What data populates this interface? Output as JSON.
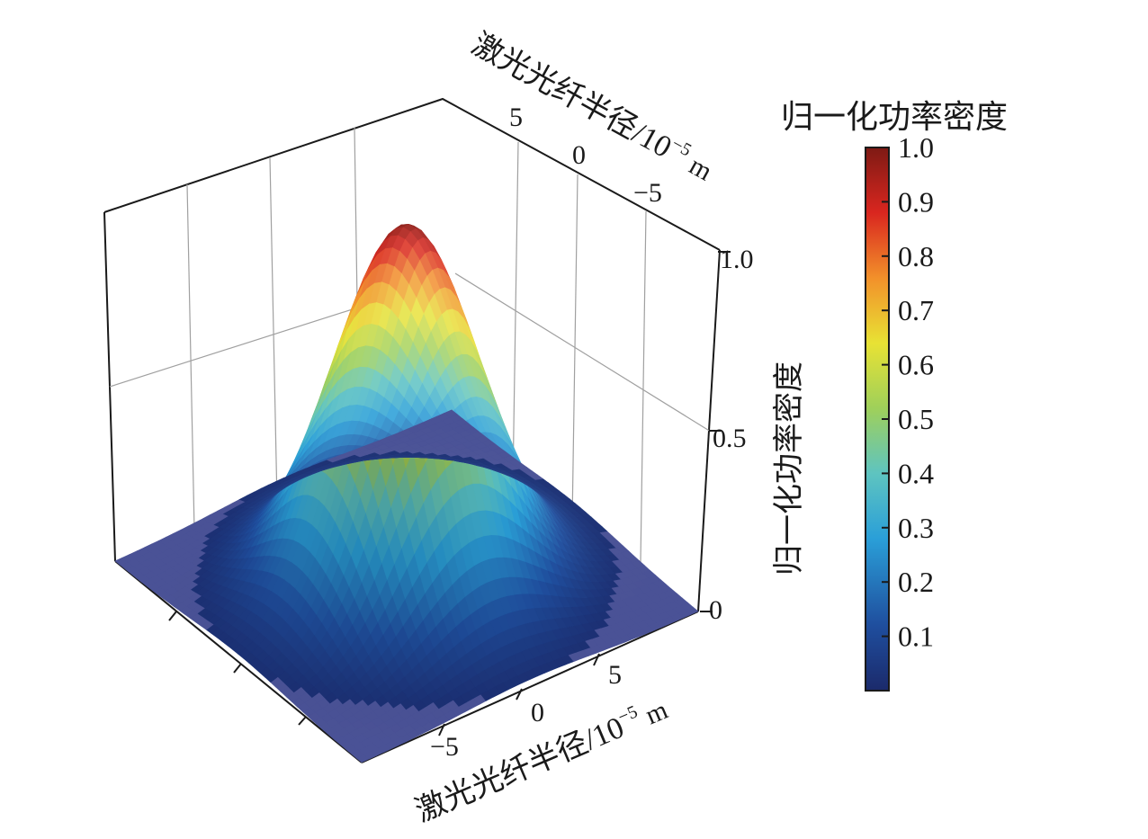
{
  "chart_data": {
    "type": "surface3d",
    "function": "gaussian",
    "x_label": "激光光纤半径/10",
    "y_label": "激光光纤半径/10",
    "z_label": "归一化功率密度",
    "axis_exponent": "−5",
    "axis_unit": "m",
    "x_range": [
      -10,
      10
    ],
    "y_range": [
      -10,
      10
    ],
    "z_range": [
      0,
      1.0
    ],
    "x_ticks": [
      "−5",
      "0",
      "5"
    ],
    "y_ticks": [
      "5",
      "0",
      "−5"
    ],
    "z_ticks": [
      "0",
      "0.5",
      "1.0"
    ],
    "peak_value": 1.0,
    "peak_position": [
      0,
      0
    ],
    "colorbar": {
      "title": "归一化功率密度",
      "range": [
        0,
        1.0
      ],
      "ticks": [
        "1.0",
        "0.9",
        "0.8",
        "0.7",
        "0.6",
        "0.5",
        "0.4",
        "0.3",
        "0.2",
        "0.1"
      ],
      "colormap": "jet"
    },
    "grid": true
  }
}
